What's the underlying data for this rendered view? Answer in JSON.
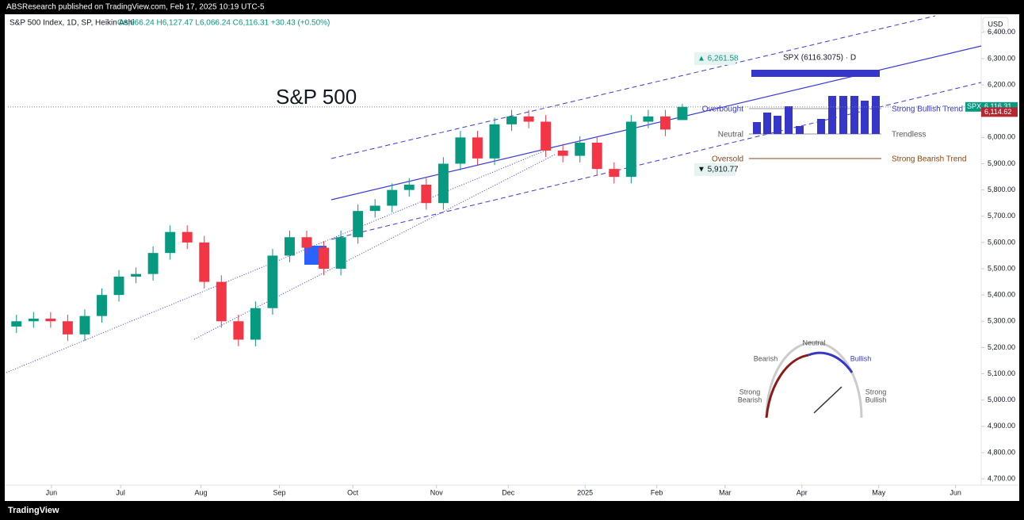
{
  "header": {
    "publisher": "ABSResearch published on TradingView.com, Feb 17, 2025 10:19 UTC-5",
    "symbol": "S&P 500 Index, 1D, SP, Heikin Ashi",
    "ohlc": "O6,066.24 H6,127.47 L6,066.24 C6,116.31 +30.43 (+0.50%)",
    "currency": "USD",
    "brand": "TradingView"
  },
  "chart_data": {
    "type": "candlestick",
    "title": "S&P 500",
    "categories": [
      null,
      null,
      null,
      null,
      null,
      null,
      null,
      null,
      null,
      null,
      null,
      null,
      null,
      null,
      null,
      null,
      null,
      null,
      null,
      null,
      null,
      null,
      null,
      null,
      null,
      null,
      null,
      null,
      null,
      null,
      null,
      null,
      null,
      null,
      null,
      null,
      null,
      null,
      null,
      null
    ],
    "series": [
      {
        "name": "SPX",
        "up_color": "#089981",
        "down_color": "#f23645",
        "open": [
          5280,
          5300,
          5310,
          5300,
          5250,
          5320,
          5400,
          5470,
          5480,
          5560,
          5640,
          5600,
          5450,
          5300,
          5230,
          5350,
          5550,
          5620,
          5580,
          5500,
          5620,
          5720,
          5740,
          5800,
          5820,
          5750,
          5900,
          6000,
          5920,
          6050,
          6080,
          6060,
          5950,
          5930,
          5980,
          5880,
          5850,
          6060,
          6080,
          6066.24
        ],
        "high": [
          5325,
          5335,
          5335,
          5325,
          5345,
          5425,
          5495,
          5505,
          5585,
          5665,
          5665,
          5625,
          5475,
          5325,
          5375,
          5575,
          5645,
          5645,
          5605,
          5645,
          5745,
          5765,
          5825,
          5845,
          5845,
          5925,
          6025,
          6025,
          6075,
          6105,
          6105,
          6085,
          5975,
          6005,
          6005,
          5905,
          6085,
          6105,
          6105,
          6127.47
        ],
        "low": [
          5255,
          5275,
          5275,
          5225,
          5225,
          5295,
          5375,
          5445,
          5455,
          5535,
          5575,
          5425,
          5275,
          5205,
          5205,
          5325,
          5525,
          5555,
          5475,
          5475,
          5595,
          5695,
          5715,
          5775,
          5725,
          5725,
          5875,
          5895,
          5895,
          6025,
          6035,
          5925,
          5905,
          5905,
          5855,
          5825,
          5825,
          6035,
          6005,
          6066.24
        ],
        "close": [
          5300,
          5310,
          5300,
          5250,
          5320,
          5400,
          5470,
          5480,
          5560,
          5640,
          5600,
          5450,
          5300,
          5230,
          5350,
          5550,
          5620,
          5580,
          5500,
          5620,
          5720,
          5740,
          5800,
          5820,
          5750,
          5900,
          6000,
          5920,
          6050,
          6080,
          6060,
          5950,
          5930,
          5980,
          5880,
          5850,
          6060,
          6080,
          6030,
          6116.31
        ]
      }
    ],
    "xlim": [
      0,
      57
    ],
    "xticks": [
      {
        "value": 2.55,
        "label": "Jun"
      },
      {
        "value": 6.6,
        "label": "Jul"
      },
      {
        "value": 11.3,
        "label": "Aug"
      },
      {
        "value": 15.9,
        "label": "Sep"
      },
      {
        "value": 20.2,
        "label": "Oct"
      },
      {
        "value": 25.1,
        "label": "Nov"
      },
      {
        "value": 29.3,
        "label": "Dec"
      },
      {
        "value": 33.8,
        "label": "2025"
      },
      {
        "value": 38.0,
        "label": "Feb"
      },
      {
        "value": 42.0,
        "label": "Mar"
      },
      {
        "value": 46.5,
        "label": "Apr"
      },
      {
        "value": 51.0,
        "label": "May"
      },
      {
        "value": 55.5,
        "label": "Jun"
      }
    ],
    "ylim": [
      4676,
      6469
    ],
    "yticks": [
      {
        "value": 4700,
        "label": "4,700.00"
      },
      {
        "value": 4800,
        "label": "4,800.00"
      },
      {
        "value": 4900,
        "label": "4,900.00"
      },
      {
        "value": 5000,
        "label": "5,000.00"
      },
      {
        "value": 5100,
        "label": "5,100.00"
      },
      {
        "value": 5200,
        "label": "5,200.00"
      },
      {
        "value": 5300,
        "label": "5,300.00"
      },
      {
        "value": 5400,
        "label": "5,400.00"
      },
      {
        "value": 5500,
        "label": "5,500.00"
      },
      {
        "value": 5600,
        "label": "5,600.00"
      },
      {
        "value": 5700,
        "label": "5,700.00"
      },
      {
        "value": 5800,
        "label": "5,800.00"
      },
      {
        "value": 5900,
        "label": "5,900.00"
      },
      {
        "value": 6000,
        "label": "6,000.00"
      },
      {
        "value": 6100,
        "label": "6,100.00"
      },
      {
        "value": 6200,
        "label": "6,200.00"
      },
      {
        "value": 6300,
        "label": "6,300.00"
      },
      {
        "value": 6400,
        "label": "6,400.00"
      }
    ],
    "price_labels": [
      {
        "name": "SPX",
        "value": 6116.31,
        "label": "6,116.31",
        "color": "#089981"
      },
      {
        "value": 6114.62,
        "label": "6,114.62",
        "color": "#b22833"
      }
    ],
    "annotations": {
      "high_mark": "▲ 6,261.58",
      "low_mark": "▼ 5,910.77"
    },
    "panel": {
      "title": "SPX (6116.3075) · D",
      "overbought": "Overbought",
      "neutral": "Neutral",
      "oversold": "Oversold",
      "strong_bullish": "Strong Bullish Trend",
      "trendless": "Trendless",
      "strong_bearish": "Strong Bearish Trend"
    },
    "gauge": {
      "neutral": "Neutral",
      "bearish": "Bearish",
      "bullish": "Bullish",
      "strong": "Strong",
      "strong_bearish": "Bearish",
      "strong2": "Strong",
      "strong_bullish": "Bullish"
    }
  }
}
